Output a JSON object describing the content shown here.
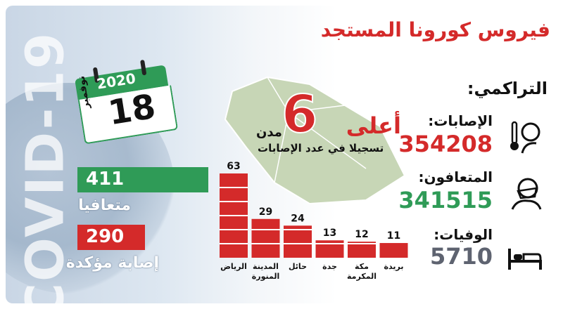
{
  "title": "فيروس كورونا المستجد",
  "background_text": "COVID-19",
  "date": {
    "year": "2020",
    "day": "18",
    "month": "نوفمبر"
  },
  "daily": {
    "recovered": {
      "value": "411",
      "label": "متعافيا",
      "color": "#2f9b57"
    },
    "confirmed": {
      "value": "290",
      "label": "إصابة مؤكدة",
      "color": "#d42a2a"
    }
  },
  "highlight": {
    "prefix": "أعلى",
    "number": "6",
    "unit": "مدن",
    "subtitle": "تسجيلا في عدد الإصابات"
  },
  "cumulative": {
    "header": "التراكمي:",
    "items": [
      {
        "label": "الإصابات:",
        "value": "354208",
        "color": "#d42a2a",
        "icon": "thermometer-patient-icon"
      },
      {
        "label": "المتعافون:",
        "value": "341515",
        "color": "#2f9b57",
        "icon": "masked-person-icon"
      },
      {
        "label": "الوفيات:",
        "value": "5710",
        "color": "#5e6370",
        "icon": "bed-icon"
      }
    ]
  },
  "chart_data": {
    "type": "bar",
    "categories": [
      "الرياض",
      "المدينة المنورة",
      "حائل",
      "جدة",
      "مكة المكرمة",
      "بريدة"
    ],
    "values": [
      63,
      29,
      24,
      13,
      12,
      11
    ],
    "ylim": [
      0,
      63
    ],
    "bar_color": "#d42a2a",
    "grid": false
  }
}
